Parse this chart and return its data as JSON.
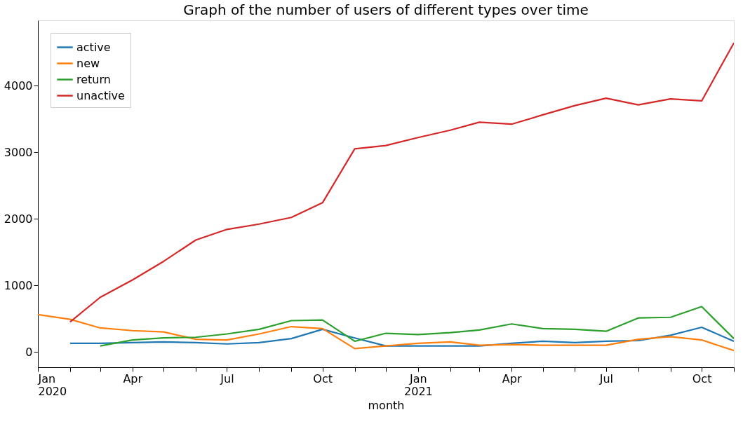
{
  "chart_data": {
    "type": "line",
    "title": "Graph of the number of users of different types over time",
    "xlabel": "month",
    "x": [
      "2020-01",
      "2020-02",
      "2020-03",
      "2020-04",
      "2020-05",
      "2020-06",
      "2020-07",
      "2020-08",
      "2020-09",
      "2020-10",
      "2020-11",
      "2020-12",
      "2021-01",
      "2021-02",
      "2021-03",
      "2021-04",
      "2021-05",
      "2021-06",
      "2021-07",
      "2021-08",
      "2021-09",
      "2021-10",
      "2021-11"
    ],
    "series": [
      {
        "name": "active",
        "color": "#1f77b4",
        "values": [
          null,
          130,
          130,
          140,
          150,
          140,
          120,
          140,
          200,
          340,
          210,
          90,
          90,
          90,
          90,
          130,
          160,
          140,
          160,
          170,
          250,
          370,
          160
        ]
      },
      {
        "name": "new",
        "color": "#ff7f0e",
        "values": [
          560,
          490,
          360,
          320,
          300,
          190,
          180,
          270,
          380,
          350,
          50,
          90,
          130,
          150,
          100,
          110,
          100,
          100,
          100,
          190,
          230,
          180,
          20
        ]
      },
      {
        "name": "return",
        "color": "#2ca02c",
        "values": [
          null,
          null,
          90,
          180,
          210,
          220,
          270,
          340,
          470,
          480,
          160,
          280,
          260,
          290,
          330,
          420,
          350,
          340,
          310,
          510,
          520,
          680,
          200
        ]
      },
      {
        "name": "unactive",
        "color": "#d62728",
        "values": [
          null,
          450,
          820,
          1080,
          1360,
          1680,
          1840,
          1920,
          2020,
          2240,
          3050,
          3100,
          3220,
          3330,
          3450,
          3420,
          3560,
          3700,
          3810,
          3710,
          3800,
          3770,
          4640
        ]
      }
    ],
    "xlim": [
      "2020-01",
      "2021-11"
    ],
    "xticks": [
      {
        "value": "2020-01",
        "label": "Jan\n2020"
      },
      {
        "value": "2020-02",
        "label": null
      },
      {
        "value": "2020-03",
        "label": null
      },
      {
        "value": "2020-04",
        "label": "Apr"
      },
      {
        "value": "2020-05",
        "label": null
      },
      {
        "value": "2020-06",
        "label": null
      },
      {
        "value": "2020-07",
        "label": "Jul"
      },
      {
        "value": "2020-08",
        "label": null
      },
      {
        "value": "2020-09",
        "label": null
      },
      {
        "value": "2020-10",
        "label": "Oct"
      },
      {
        "value": "2020-11",
        "label": null
      },
      {
        "value": "2020-12",
        "label": null
      },
      {
        "value": "2021-01",
        "label": "Jan\n2021"
      },
      {
        "value": "2021-02",
        "label": null
      },
      {
        "value": "2021-03",
        "label": null
      },
      {
        "value": "2021-04",
        "label": "Apr"
      },
      {
        "value": "2021-05",
        "label": null
      },
      {
        "value": "2021-06",
        "label": null
      },
      {
        "value": "2021-07",
        "label": "Jul"
      },
      {
        "value": "2021-08",
        "label": null
      },
      {
        "value": "2021-09",
        "label": null
      },
      {
        "value": "2021-10",
        "label": "Oct"
      },
      {
        "value": "2021-11",
        "label": null
      }
    ],
    "ylim": [
      -230,
      4980
    ],
    "yticks": [
      0,
      1000,
      2000,
      3000,
      4000
    ],
    "grid": false,
    "legend": "top left",
    "marker": "none",
    "line_style": "solid"
  }
}
